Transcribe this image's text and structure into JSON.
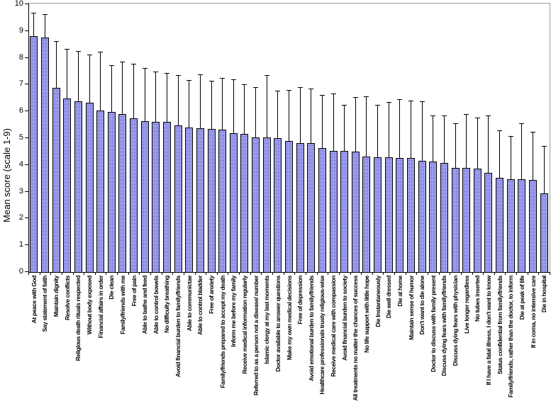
{
  "chart_data": {
    "type": "bar",
    "title": "",
    "xlabel": "",
    "ylabel": "Mean score (scale 1-9)",
    "ylim": [
      0,
      10
    ],
    "yticks": [
      0,
      1,
      2,
      3,
      4,
      5,
      6,
      7,
      8,
      9,
      10
    ],
    "grid": false,
    "legend": "none",
    "bar_fill_color": "#9b9bec",
    "bar_border_color": "#000000",
    "error_bar_color": "#000000",
    "frame_color": "#9e9e9e",
    "categories": [
      "At peace with God",
      "Say statement of faith",
      "Maintain dignity",
      "Resolve conflicts",
      "Religious death rituals respected",
      "Without body exposed",
      "Financial affairs in order",
      "Die clean",
      "Family/friends with me",
      "Free of pain",
      "Able to bathe and feed",
      "Able to control bowels",
      "No difficulty breathing",
      "Avoid financial burden to family/friends",
      "Able to communictae",
      "Able to control bladder",
      "Free of anxiety",
      "Family/friends prepared to accept my death",
      "Inform me before my family",
      "Receive medical information regularly",
      "Referred to as a person not a disease/ number",
      "Islamic clergy at my last moments",
      "Doctor available to answer questions",
      "Make my own medical decisions",
      "Free of depression",
      "Avoid emotional burden to family/friends",
      "Healthcare professionals trusty religious-wise",
      "Receive medical care with compassion",
      "Avoid financial burden to society",
      "All treatments no matter the chances of success",
      "No life support with little hope",
      "Die Instantaneously",
      "Die well dressed",
      "Die at home",
      "Maintain sense of humor",
      "Don't want to die alone",
      "Doctor to discuss with family present",
      "Discuss dying fears with family/friends",
      "Discuss dying fears with physician",
      "Live longer regardless",
      "No tubes inserted",
      "If I have a fatal illness, I don't want to know",
      "Status confidential from family/friends",
      "Family/friends, rather than the doctor, to inform",
      "Die at peak of life",
      "If in coma, no intensive care",
      "Die in hospital"
    ],
    "series": [
      {
        "name": "Mean score",
        "values": [
          8.78,
          8.73,
          6.85,
          6.45,
          6.36,
          6.29,
          6.0,
          5.94,
          5.88,
          5.71,
          5.61,
          5.58,
          5.57,
          5.46,
          5.38,
          5.34,
          5.32,
          5.3,
          5.15,
          5.13,
          5.0,
          5.0,
          4.98,
          4.86,
          4.8,
          4.79,
          4.61,
          4.51,
          4.49,
          4.48,
          4.28,
          4.26,
          4.26,
          4.24,
          4.23,
          4.13,
          4.11,
          4.06,
          3.87,
          3.85,
          3.84,
          3.69,
          3.49,
          3.45,
          3.45,
          3.42,
          2.92
        ]
      }
    ],
    "error_whisker_top_values": [
      9.65,
      9.6,
      8.6,
      8.3,
      8.24,
      8.09,
      8.19,
      7.71,
      7.84,
      7.75,
      7.58,
      7.45,
      7.4,
      7.33,
      7.15,
      7.35,
      7.12,
      7.22,
      7.16,
      6.98,
      6.87,
      7.32,
      6.74,
      6.78,
      6.88,
      6.83,
      6.6,
      6.65,
      6.21,
      6.51,
      6.54,
      6.23,
      6.32,
      6.43,
      6.37,
      6.34,
      5.83,
      5.83,
      5.53,
      5.86,
      5.75,
      5.83,
      5.26,
      5.06,
      5.53,
      5.2,
      4.67
    ]
  }
}
